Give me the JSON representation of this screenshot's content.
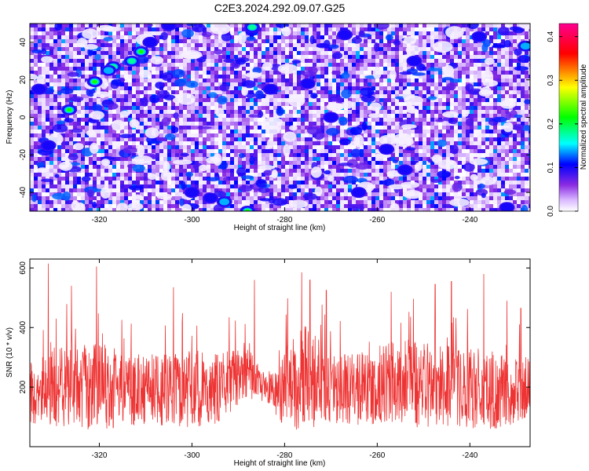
{
  "figure": {
    "title": "C2E3.2024.292.09.07.G25"
  },
  "chart_data": [
    {
      "type": "heatmap",
      "title": "",
      "xlabel": "Height of straight line (km)",
      "ylabel": "Frequency (Hz)",
      "xlim": [
        -335,
        -227
      ],
      "ylim": [
        -50,
        50
      ],
      "xticks": [
        -320,
        -300,
        -280,
        -260,
        -240
      ],
      "yticks": [
        -40,
        -20,
        0,
        20,
        40
      ],
      "xtick_labels": [
        "-320",
        "-300",
        "-280",
        "-260",
        "-240"
      ],
      "ytick_labels": [
        "-40",
        "-20",
        "0",
        "20",
        "40"
      ],
      "colorbar": {
        "label": "Normalized spectral amplitude",
        "range": [
          0,
          0.43
        ],
        "ticks": [
          0.0,
          0.1,
          0.2,
          0.3,
          0.4
        ],
        "tick_labels": [
          "0.0",
          "0.1",
          "0.2",
          "0.3",
          "0.4"
        ],
        "colors": [
          "#ffffff",
          "#8a2be2",
          "#0000ff",
          "#00ffff",
          "#00ff00",
          "#ffff00",
          "#ff0000",
          "#ff0090"
        ]
      },
      "hot_spots": [
        {
          "x": -326.5,
          "y": 4,
          "value": 0.25
        },
        {
          "x": -321,
          "y": 19,
          "value": 0.22
        },
        {
          "x": -317,
          "y": 27,
          "value": 0.18
        },
        {
          "x": -313,
          "y": 30,
          "value": 0.2
        },
        {
          "x": -311,
          "y": 35,
          "value": 0.24
        },
        {
          "x": -309,
          "y": 40,
          "value": 0.12
        },
        {
          "x": -318,
          "y": 25,
          "value": 0.14
        },
        {
          "x": -305,
          "y": 49,
          "value": 0.1
        },
        {
          "x": -287,
          "y": 48,
          "value": 0.2
        },
        {
          "x": -300,
          "y": -40,
          "value": 0.1
        },
        {
          "x": -296,
          "y": -43,
          "value": 0.12
        },
        {
          "x": -293,
          "y": -45,
          "value": 0.14
        },
        {
          "x": -288,
          "y": -50,
          "value": 0.22
        },
        {
          "x": -275,
          "y": 18,
          "value": 0.13
        },
        {
          "x": -270,
          "y": 0,
          "value": 0.11
        },
        {
          "x": -258,
          "y": -17,
          "value": 0.1
        },
        {
          "x": -254,
          "y": -28,
          "value": 0.12
        },
        {
          "x": -264,
          "y": -40,
          "value": 0.1
        },
        {
          "x": -252,
          "y": 30,
          "value": 0.11
        },
        {
          "x": -238,
          "y": 43,
          "value": 0.1
        },
        {
          "x": -228,
          "y": 38,
          "value": 0.16
        },
        {
          "x": -232,
          "y": -48,
          "value": 0.1
        },
        {
          "x": -267,
          "y": 44,
          "value": 0.1
        },
        {
          "x": -283,
          "y": 15,
          "value": 0.1
        },
        {
          "x": -333,
          "y": 15,
          "value": 0.1
        },
        {
          "x": -331,
          "y": -15,
          "value": 0.1
        }
      ]
    },
    {
      "type": "line",
      "title": "",
      "xlabel": "Height of straight line (km)",
      "ylabel": "SNR (10 * v/v)",
      "xlim": [
        -335,
        -227
      ],
      "ylim": [
        0,
        630
      ],
      "xticks": [
        -320,
        -300,
        -280,
        -260,
        -240
      ],
      "yticks": [
        200,
        400,
        600
      ],
      "xtick_labels": [
        "-320",
        "-300",
        "-280",
        "-260",
        "-240"
      ],
      "ytick_labels": [
        "200",
        "400",
        "600"
      ],
      "series": [
        {
          "color": "#ee3333",
          "profile_x": [
            -335,
            -330,
            -325,
            -320,
            -315,
            -310,
            -305,
            -300,
            -295,
            -290,
            -287,
            -284,
            -280,
            -275,
            -270,
            -265,
            -260,
            -255,
            -250,
            -245,
            -240,
            -235,
            -230,
            -227
          ],
          "mean": [
            190,
            200,
            200,
            200,
            195,
            195,
            190,
            195,
            195,
            225,
            225,
            195,
            210,
            235,
            200,
            190,
            200,
            215,
            200,
            200,
            200,
            190,
            185,
            190
          ],
          "spread": [
            110,
            130,
            140,
            150,
            130,
            120,
            120,
            130,
            120,
            100,
            90,
            40,
            150,
            180,
            120,
            120,
            130,
            150,
            150,
            140,
            140,
            130,
            120,
            110
          ],
          "peaks": [
            {
              "x": -331,
              "y": 615
            },
            {
              "x": -320.6,
              "y": 605
            },
            {
              "x": -326,
              "y": 540
            },
            {
              "x": -304,
              "y": 535
            },
            {
              "x": -286.5,
              "y": 560
            },
            {
              "x": -274.5,
              "y": 560
            },
            {
              "x": -271,
              "y": 525
            },
            {
              "x": -257,
              "y": 520
            },
            {
              "x": -247.5,
              "y": 545
            },
            {
              "x": -244,
              "y": 555
            },
            {
              "x": -237,
              "y": 580
            },
            {
              "x": -232,
              "y": 490
            },
            {
              "x": -229,
              "y": 465
            }
          ]
        }
      ]
    }
  ]
}
